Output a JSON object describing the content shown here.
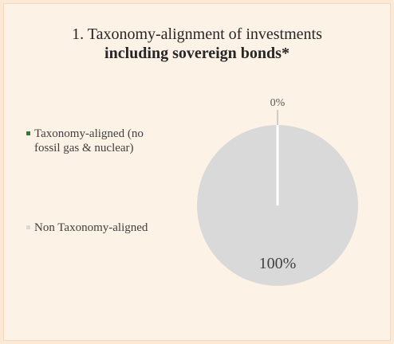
{
  "chart_data": {
    "type": "pie",
    "title_line1": "1. Taxonomy-alignment of investments",
    "title_line2": "including sovereign bonds*",
    "categories": [
      "Taxonomy-aligned (no fossil gas & nuclear)",
      "Non Taxonomy-aligned"
    ],
    "values": [
      0,
      100
    ],
    "data_labels": [
      "0%",
      "100%"
    ],
    "colors": [
      "#2e7d32",
      "#d9d9d9"
    ],
    "legend_placement": "left",
    "legend": [
      {
        "lines": [
          "Taxonomy-aligned (no",
          "fossil gas & nuclear)"
        ]
      },
      {
        "lines": [
          "Non Taxonomy-aligned"
        ]
      }
    ]
  }
}
